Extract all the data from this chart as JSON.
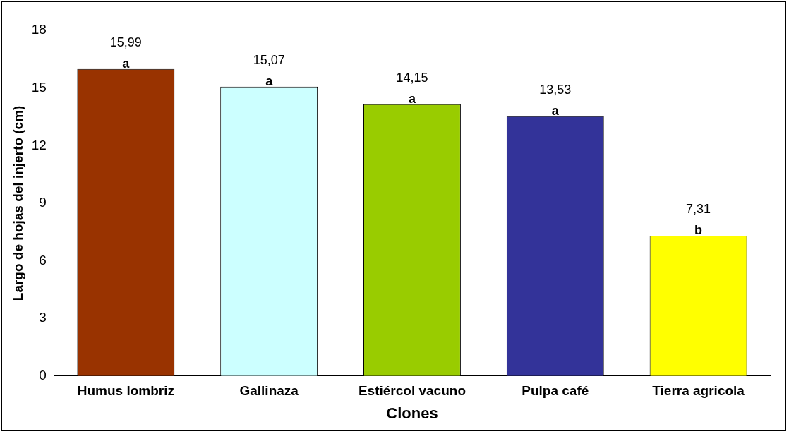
{
  "chart_data": {
    "type": "bar",
    "xlabel": "Clones",
    "ylabel": "Largo de hojas del injerto (cm)",
    "categories": [
      "Humus lombriz",
      "Gallinaza",
      "Estiércol vacuno",
      "Pulpa café",
      "Tierra agricola"
    ],
    "values": [
      15.99,
      15.07,
      14.15,
      13.53,
      7.31
    ],
    "value_labels": [
      "15,99",
      "15,07",
      "14,15",
      "13,53",
      "7,31"
    ],
    "colors": [
      "#993300",
      "#ccffff",
      "#99cc00",
      "#333399",
      "#ffff00"
    ],
    "ylim": [
      0,
      18
    ],
    "yticks": [
      0,
      3,
      6,
      9,
      12,
      15,
      18
    ],
    "annotations": [
      {
        "text": "a",
        "x": "Humus lombriz",
        "y": 15.99
      },
      {
        "text": "a",
        "x": "Gallinaza",
        "y": 15.07
      },
      {
        "text": "a",
        "x": "Estiércol vacuno",
        "y": 14.15
      },
      {
        "text": "a",
        "x": "Pulpa café",
        "y": 13.53
      },
      {
        "text": "b",
        "x": "Tierra agricola",
        "y": 7.31
      }
    ]
  }
}
